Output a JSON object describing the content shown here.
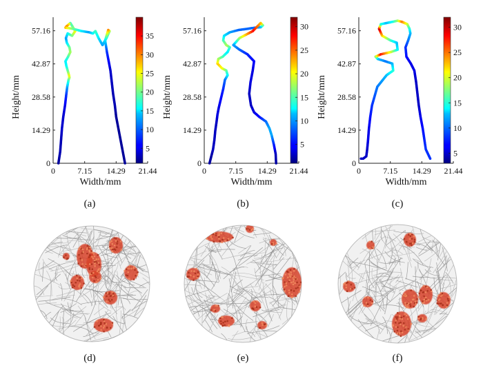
{
  "chart_data": [
    {
      "panel": "(a)",
      "type": "line",
      "xlabel": "Width/mm",
      "ylabel": "Height/mm",
      "xticks": [
        "0",
        "7.15",
        "14.29",
        "21.44"
      ],
      "yticks": [
        "0",
        "14.29",
        "28.58",
        "42.87",
        "57.16"
      ],
      "xlim": [
        0,
        21.44
      ],
      "ylim": [
        0,
        63
      ],
      "colorbar": {
        "ticks": [
          "5",
          "10",
          "15",
          "20",
          "25",
          "30",
          "35"
        ],
        "range": [
          1,
          40
        ]
      },
      "series": [
        {
          "x": [
            1.2,
            1.6,
            1.8,
            2.0,
            2.3,
            2.7,
            3.0,
            3.2,
            3.5,
            3.7,
            3.6,
            3.3,
            3.0,
            2.8,
            3.4,
            3.9,
            3.7,
            3.1,
            2.9,
            3.3,
            4.3,
            5.0,
            4.4,
            3.9,
            3.6,
            3.0,
            2.8,
            4.5,
            6.5,
            8.2,
            9.0,
            9.6,
            10.3,
            11.2,
            12.1,
            12.8,
            12.5,
            11.8,
            12.2,
            13.0,
            13.6,
            14.0,
            14.3,
            14.8,
            15.5,
            16.3
          ],
          "y": [
            0,
            5,
            10,
            15,
            20,
            25,
            30,
            33,
            36,
            37,
            38,
            40,
            42,
            44,
            46,
            48,
            50,
            52,
            54,
            56,
            55,
            57,
            59,
            60.5,
            60,
            59,
            58.5,
            58,
            57,
            56.5,
            56,
            57,
            54,
            51,
            54,
            57,
            57.5,
            53,
            48,
            40,
            30,
            25,
            20,
            15,
            8,
            0
          ],
          "c": [
            2,
            3,
            3,
            4,
            4,
            5,
            8,
            12,
            18,
            22,
            25,
            20,
            16,
            15,
            18,
            22,
            20,
            15,
            12,
            15,
            20,
            25,
            20,
            18,
            25,
            30,
            28,
            20,
            15,
            12,
            15,
            18,
            15,
            12,
            15,
            22,
            30,
            15,
            8,
            4,
            3,
            3,
            2,
            2,
            2,
            2
          ]
        }
      ]
    },
    {
      "panel": "(b)",
      "type": "line",
      "xlabel": "Width/mm",
      "ylabel": "Height/mm",
      "xticks": [
        "0",
        "7.15",
        "14.29",
        "21.44"
      ],
      "yticks": [
        "0",
        "14.29",
        "28.58",
        "42.87",
        "57.16"
      ],
      "xlim": [
        0,
        21.44
      ],
      "ylim": [
        0,
        63
      ],
      "colorbar": {
        "ticks": [
          "5",
          "10",
          "15",
          "20",
          "25",
          "30"
        ],
        "range": [
          1,
          32
        ]
      },
      "series": [
        {
          "x": [
            1.2,
            1.6,
            2.0,
            2.3,
            2.5,
            2.8,
            3.0,
            3.3,
            3.8,
            4.3,
            4.7,
            5.3,
            5.0,
            4.0,
            3.0,
            3.2,
            4.2,
            5.3,
            5.8,
            5.0,
            4.3,
            4.5,
            5.8,
            7.8,
            9.8,
            11.5,
            12.8,
            13.3,
            12.8,
            11.0,
            8.0,
            6.6,
            8.0,
            9.8,
            11.3,
            11.0,
            10.5,
            10.2,
            10.6,
            11.3,
            12.5,
            14.0,
            14.8,
            15.3,
            15.8,
            16.2,
            16.3
          ],
          "y": [
            0,
            3,
            6,
            10,
            14,
            18,
            21,
            24,
            28,
            32,
            36,
            38,
            40,
            41,
            43,
            45,
            46,
            48,
            50,
            51,
            53,
            55,
            56.5,
            57.5,
            58,
            58.5,
            58.7,
            59.5,
            60.5,
            57,
            54,
            51,
            49,
            47,
            44,
            40,
            35,
            30,
            25,
            22,
            20,
            18,
            15,
            12,
            8,
            4,
            0
          ],
          "c": [
            2,
            2,
            3,
            3,
            3,
            3,
            4,
            4,
            5,
            6,
            8,
            12,
            15,
            20,
            22,
            18,
            15,
            12,
            14,
            18,
            15,
            12,
            10,
            8,
            8,
            8,
            10,
            15,
            22,
            28,
            18,
            10,
            8,
            6,
            5,
            4,
            4,
            3,
            3,
            4,
            5,
            8,
            10,
            10,
            6,
            3,
            2
          ]
        }
      ]
    },
    {
      "panel": "(c)",
      "type": "line",
      "xlabel": "Width/mm",
      "ylabel": "Height/mm",
      "xticks": [
        "0",
        "7.15",
        "14.29",
        "21.44"
      ],
      "yticks": [
        "0",
        "14.29",
        "28.58",
        "42.87",
        "57.16"
      ],
      "xlim": [
        0,
        21.44
      ],
      "ylim": [
        0,
        63
      ],
      "colorbar": {
        "ticks": [
          "5",
          "10",
          "15",
          "20",
          "25",
          "30"
        ],
        "range": [
          3,
          32
        ]
      },
      "series": [
        {
          "x": [
            0.5,
            1.0,
            1.7,
            1.9,
            2.1,
            2.3,
            2.6,
            3.0,
            4.2,
            6.3,
            7.8,
            7.6,
            6.0,
            4.3,
            3.8,
            5.0,
            7.3,
            8.8,
            8.6,
            7.2,
            5.3,
            4.6,
            5.0,
            6.3,
            7.6,
            8.8,
            9.8,
            11.0,
            11.5,
            11.7,
            11.2,
            10.6,
            10.8,
            11.8,
            12.6,
            13.0,
            13.3,
            13.6,
            14.0,
            14.5,
            15.2,
            16.2
          ],
          "y": [
            2,
            2,
            3,
            6,
            10,
            15,
            20,
            25,
            33,
            38,
            40,
            43,
            44,
            45,
            46,
            47,
            48,
            49,
            52,
            53,
            55,
            58,
            60,
            60.5,
            61,
            61.5,
            61,
            60,
            58,
            56,
            53,
            50,
            46,
            43,
            40,
            35,
            30,
            25,
            20,
            15,
            6,
            2
          ],
          "c": [
            5,
            5,
            5,
            5,
            6,
            6,
            7,
            8,
            10,
            12,
            15,
            12,
            10,
            12,
            18,
            28,
            20,
            14,
            12,
            15,
            22,
            30,
            15,
            12,
            14,
            18,
            25,
            20,
            15,
            12,
            10,
            8,
            7,
            6,
            6,
            5,
            5,
            5,
            6,
            7,
            8,
            8
          ]
        }
      ]
    }
  ],
  "scans": [
    {
      "label": "(d)"
    },
    {
      "label": "(e)"
    },
    {
      "label": "(f)"
    }
  ],
  "colors": {
    "curve_low": "#1f3fa6",
    "curve_high": "#8b0a0a",
    "highlight": "#d8432a",
    "fiber": "#9a9a9a"
  }
}
